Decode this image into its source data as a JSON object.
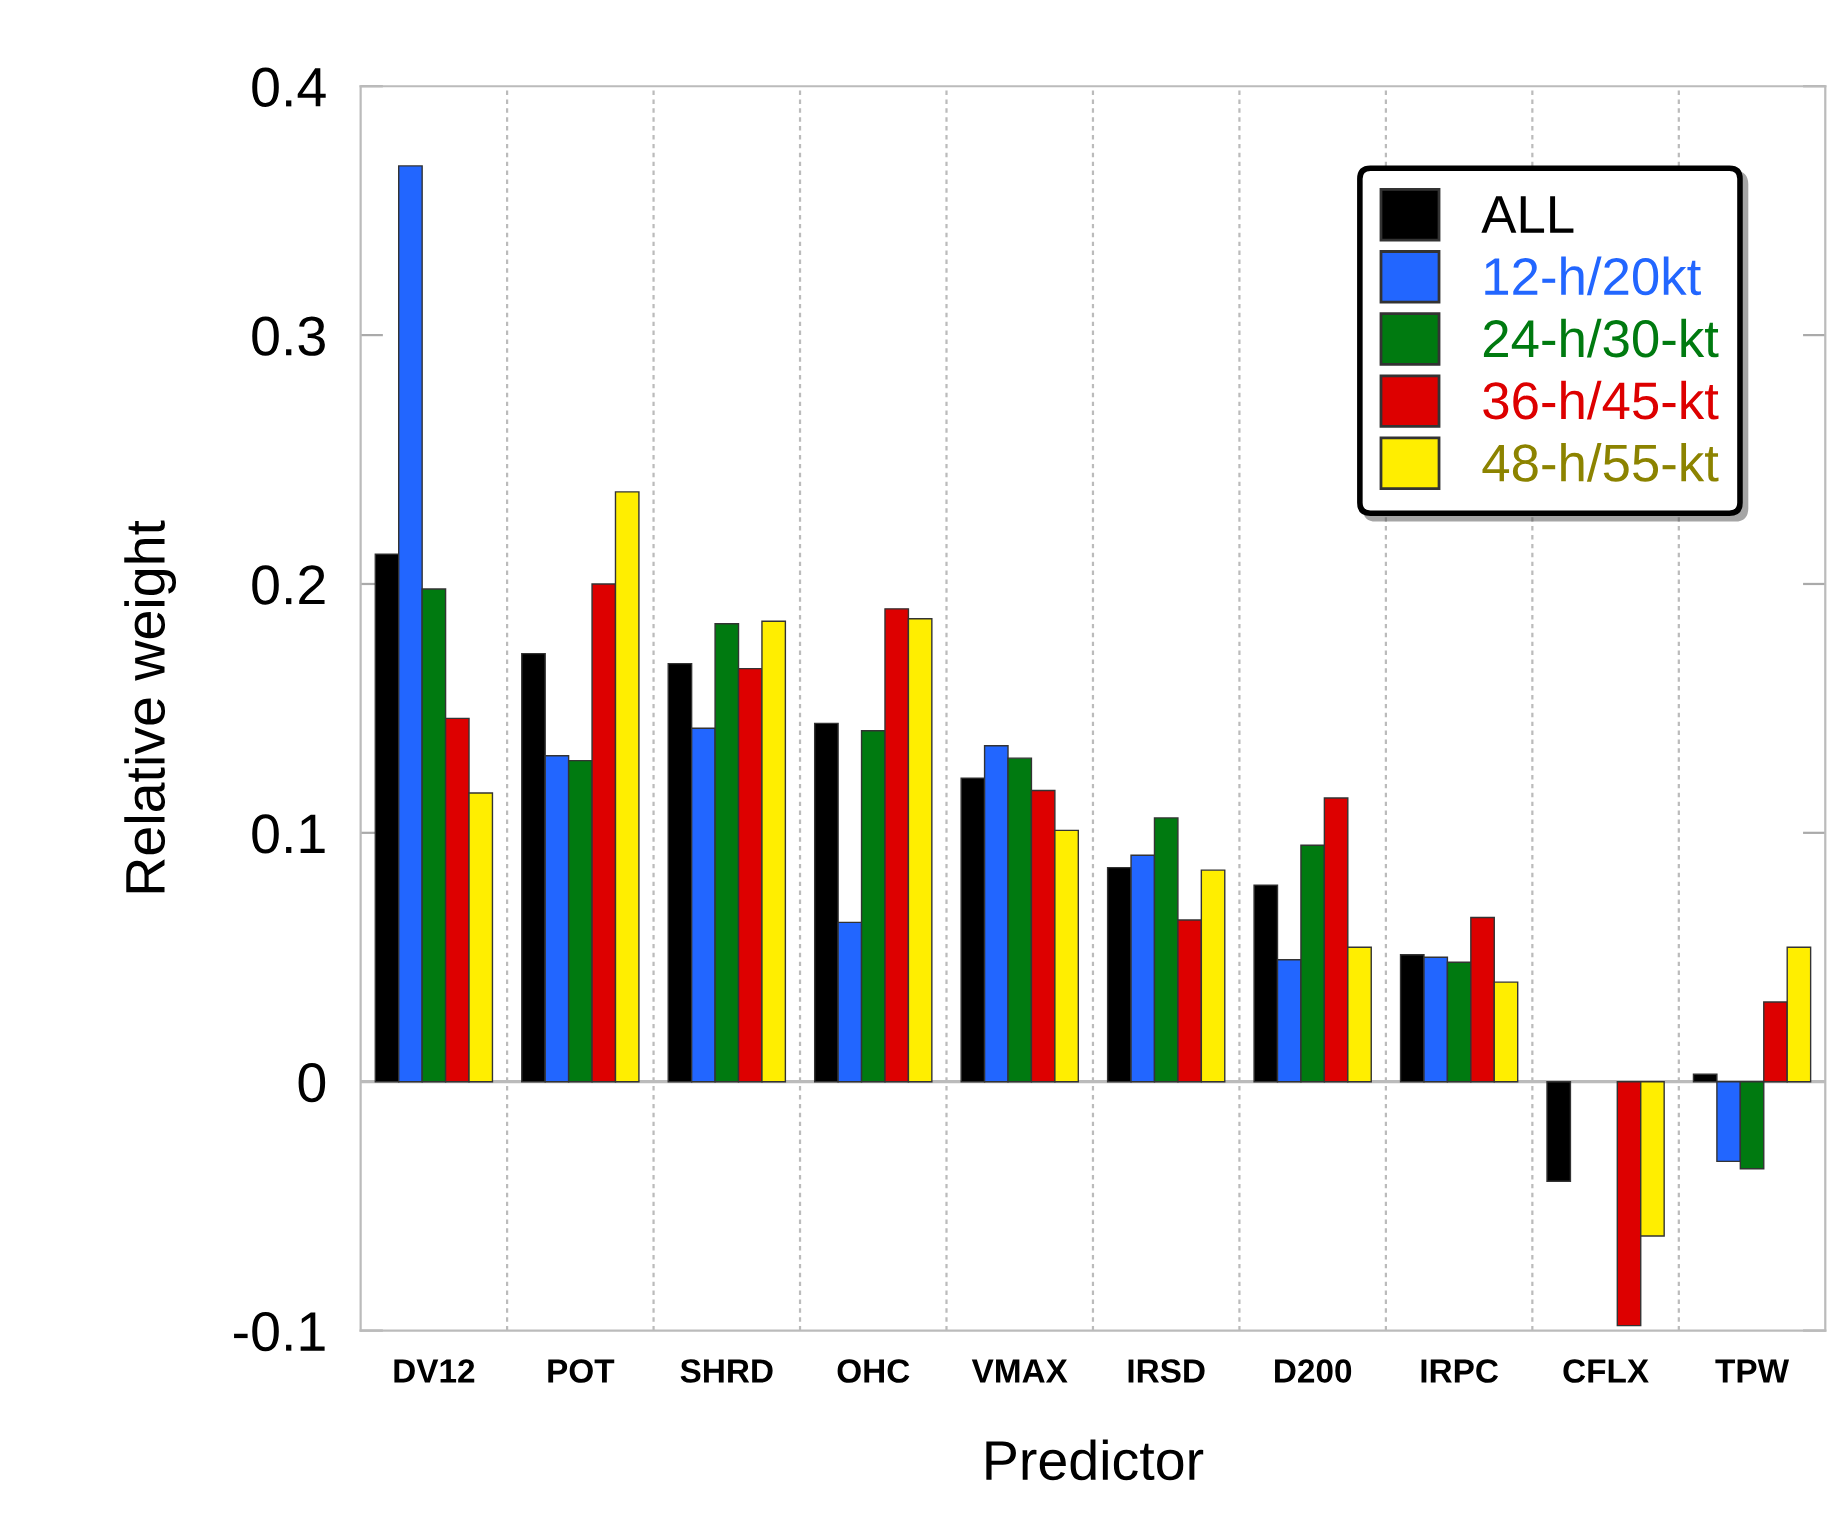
{
  "chart_data": {
    "type": "bar",
    "xlabel": "Predictor",
    "ylabel": "Relative weight",
    "categories": [
      "DV12",
      "POT",
      "SHRD",
      "OHC",
      "VMAX",
      "IRSD",
      "D200",
      "IRPC",
      "CFLX",
      "TPW"
    ],
    "series": [
      {
        "name": "ALL",
        "color": "#000000",
        "values": [
          0.212,
          0.172,
          0.168,
          0.144,
          0.122,
          0.086,
          0.079,
          0.051,
          -0.04,
          0.003
        ]
      },
      {
        "name": "12-h/20kt",
        "color": "#2266ff",
        "values": [
          0.368,
          0.131,
          0.142,
          0.064,
          0.135,
          0.091,
          0.049,
          0.05,
          null,
          -0.032
        ]
      },
      {
        "name": "24-h/30-kt",
        "color": "#007a10",
        "values": [
          0.198,
          0.129,
          0.184,
          0.141,
          0.13,
          0.106,
          0.095,
          0.048,
          null,
          -0.035
        ]
      },
      {
        "name": "36-h/45-kt",
        "color": "#dd0000",
        "values": [
          0.146,
          0.2,
          0.166,
          0.19,
          0.117,
          0.065,
          0.114,
          0.066,
          -0.098,
          0.032
        ]
      },
      {
        "name": "48-h/55-kt",
        "color": "#ffee00",
        "values": [
          0.116,
          0.237,
          0.185,
          0.186,
          0.101,
          0.085,
          0.054,
          0.04,
          -0.062,
          0.054
        ]
      }
    ],
    "ylim": [
      -0.1,
      0.4
    ],
    "yticks": [
      {
        "value": -0.1,
        "label": "-0.1"
      },
      0,
      0.1,
      0.2,
      0.3,
      0.4
    ],
    "ref_lines": [
      {
        "axis": "y",
        "value": 0,
        "color": "#bbbbbb"
      }
    ],
    "grid": "x",
    "legend": "top right"
  }
}
